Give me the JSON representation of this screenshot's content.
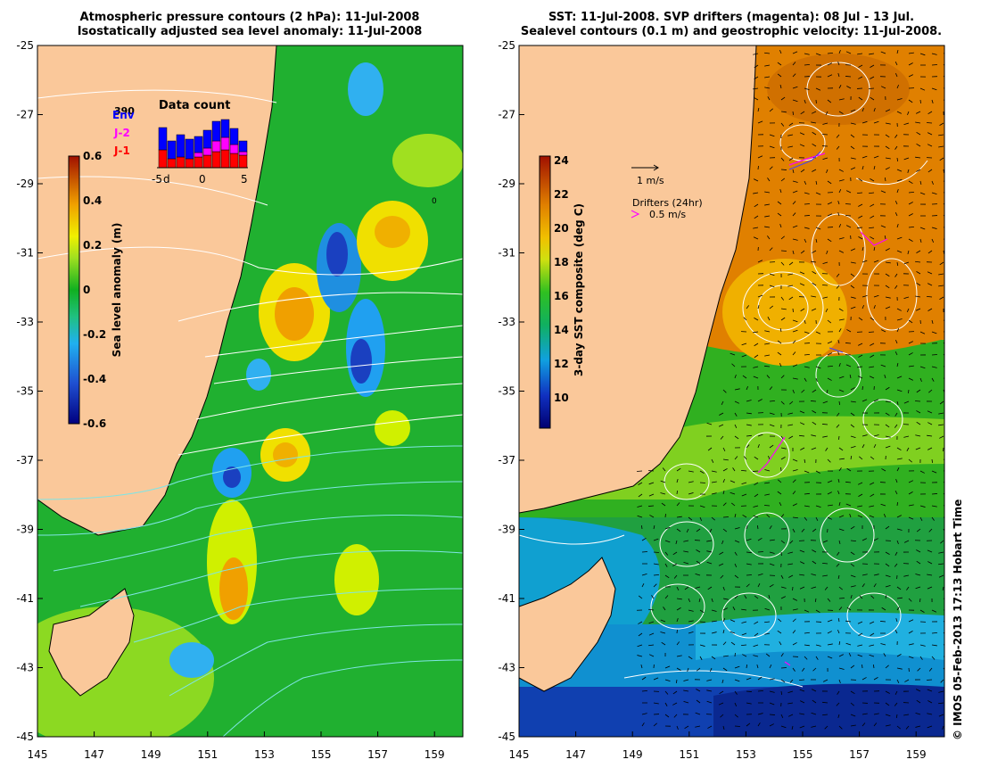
{
  "left_panel": {
    "title_line1": "Atmospheric pressure contours (2 hPa): 11-Jul-2008",
    "title_line2": "Isostatically adjusted sea level anomaly: 11-Jul-2008",
    "x_ticks": [
      "145",
      "147",
      "149",
      "151",
      "153",
      "155",
      "157",
      "159"
    ],
    "y_ticks": [
      "-25",
      "-27",
      "-29",
      "-31",
      "-33",
      "-35",
      "-37",
      "-39",
      "-41",
      "-43",
      "-45"
    ],
    "colorbar": {
      "label": "Sea level anomaly (m)",
      "ticks": [
        "0.6",
        "0.4",
        "0.2",
        "0",
        "-0.2",
        "-0.4",
        "-0.6"
      ],
      "range": [
        -0.6,
        0.6
      ]
    },
    "data_count": {
      "title": "Data count",
      "max_label": "390",
      "legend": [
        "Env",
        "J-2",
        "J-1"
      ],
      "x_ticks": [
        "-5",
        "d",
        "0",
        "5"
      ],
      "colors": {
        "Env": "#0000ff",
        "J-2": "#ff00ff",
        "J-1": "#ff0000"
      }
    },
    "contour_value_label": "0"
  },
  "right_panel": {
    "title_line1": "SST: 11-Jul-2008. SVP drifters (magenta): 08 Jul - 13 Jul.",
    "title_line2": "Sealevel contours (0.1 m) and geostrophic velocity: 11-Jul-2008.",
    "x_ticks": [
      "145",
      "147",
      "149",
      "151",
      "153",
      "155",
      "157",
      "159"
    ],
    "y_ticks": [
      "-25",
      "-27",
      "-29",
      "-31",
      "-33",
      "-35",
      "-37",
      "-39",
      "-41",
      "-43",
      "-45"
    ],
    "colorbar": {
      "label": "3-day SST composite (deg C)",
      "ticks": [
        "24",
        "22",
        "20",
        "18",
        "16",
        "14",
        "12",
        "10"
      ],
      "range": [
        9,
        24
      ]
    },
    "velocity_scale_label": "1 m/s",
    "drifters_label": "Drifters (24hr)",
    "drifters_speed_label": "0.5 m/s"
  },
  "credit": "© IMOS 05-Feb-2013 17:13 Hobart Time",
  "colors": {
    "land": "#fac89a",
    "drifter": "#ff00ff",
    "contour": "#ffffff",
    "pressure_contour_cyan": "#7fe5e5"
  }
}
